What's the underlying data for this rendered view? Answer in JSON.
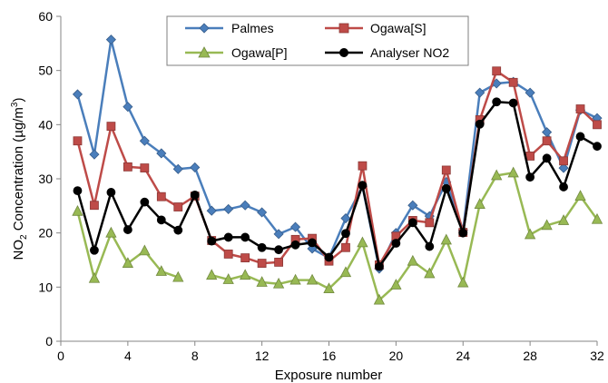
{
  "chart_data": {
    "type": "line",
    "xlabel": "Exposure number",
    "ylabel": "NO2 Concentration (µg/m³)",
    "ylabel_parts": {
      "a": "NO",
      "b": "2",
      "c": " Concentration (µg/m",
      "d": "3",
      "e": ")"
    },
    "xlim": [
      0,
      32
    ],
    "ylim": [
      0,
      60
    ],
    "xticks": [
      0,
      4,
      8,
      12,
      16,
      20,
      24,
      28,
      32
    ],
    "yticks": [
      0,
      10,
      20,
      30,
      40,
      50,
      60
    ],
    "grid": false,
    "legend_position": "top-center",
    "series": [
      {
        "name": "Palmes",
        "color": "#4a7ebb",
        "marker": "diamond",
        "x": [
          1,
          2,
          3,
          4,
          5,
          6,
          7,
          8,
          9,
          10,
          11,
          12,
          13,
          14,
          15,
          16,
          17,
          18,
          19,
          20,
          21,
          22,
          23,
          24,
          25,
          26,
          27,
          28,
          29,
          30,
          31,
          32
        ],
        "y": [
          45.6,
          34.5,
          55.7,
          43.3,
          37.0,
          34.7,
          31.8,
          32.1,
          24.1,
          24.4,
          25.1,
          23.8,
          19.8,
          21.1,
          17.1,
          15.4,
          22.7,
          28.6,
          13.4,
          20.0,
          25.1,
          23.1,
          29.4,
          20.5,
          45.9,
          47.6,
          47.9,
          45.9,
          38.6,
          32.0,
          42.7,
          41.2
        ]
      },
      {
        "name": "Ogawa[S]",
        "color": "#be4b48",
        "marker": "square",
        "x": [
          1,
          2,
          3,
          4,
          5,
          6,
          7,
          8,
          9,
          10,
          11,
          12,
          13,
          14,
          15,
          16,
          17,
          18,
          19,
          20,
          21,
          22,
          23,
          24,
          25,
          26,
          27,
          28,
          29,
          30,
          31,
          32
        ],
        "y": [
          37.0,
          25.1,
          39.7,
          32.2,
          32.0,
          26.7,
          24.8,
          26.8,
          18.6,
          16.1,
          15.4,
          14.4,
          14.6,
          18.8,
          19.0,
          14.8,
          17.3,
          32.4,
          14.1,
          19.4,
          22.3,
          21.9,
          31.6,
          20.1,
          40.9,
          49.9,
          47.8,
          34.2,
          37.0,
          33.3,
          42.9,
          40.0
        ]
      },
      {
        "name": "Ogawa[P]",
        "color": "#98b954",
        "marker": "triangle",
        "x": [
          1,
          2,
          3,
          4,
          5,
          6,
          7,
          9,
          10,
          11,
          12,
          13,
          14,
          15,
          16,
          17,
          18,
          19,
          20,
          21,
          22,
          23,
          24,
          25,
          26,
          27,
          28,
          29,
          30,
          31,
          32
        ],
        "y": [
          24.0,
          11.6,
          20.0,
          14.4,
          16.7,
          12.9,
          11.8,
          12.2,
          11.4,
          12.2,
          10.9,
          10.6,
          11.3,
          11.3,
          9.7,
          12.7,
          18.2,
          7.6,
          10.4,
          14.8,
          12.5,
          18.7,
          10.8,
          25.3,
          30.6,
          31.1,
          19.7,
          21.4,
          22.3,
          26.8,
          22.5
        ]
      },
      {
        "name": "Analyser NO2",
        "color": "#000000",
        "marker": "circle",
        "x": [
          1,
          2,
          3,
          4,
          5,
          6,
          7,
          8,
          9,
          10,
          11,
          12,
          13,
          14,
          15,
          16,
          17,
          18,
          19,
          20,
          21,
          22,
          23,
          24,
          25,
          26,
          27,
          28,
          29,
          30,
          31,
          32
        ],
        "y": [
          27.8,
          16.8,
          27.5,
          20.6,
          25.7,
          22.4,
          20.5,
          27.0,
          18.5,
          19.2,
          19.2,
          17.3,
          16.9,
          17.8,
          18.2,
          15.5,
          19.9,
          28.8,
          13.8,
          18.1,
          21.9,
          17.5,
          28.2,
          20.0,
          40.1,
          44.2,
          44.0,
          30.3,
          33.8,
          28.5,
          37.8,
          36.0
        ]
      }
    ]
  }
}
